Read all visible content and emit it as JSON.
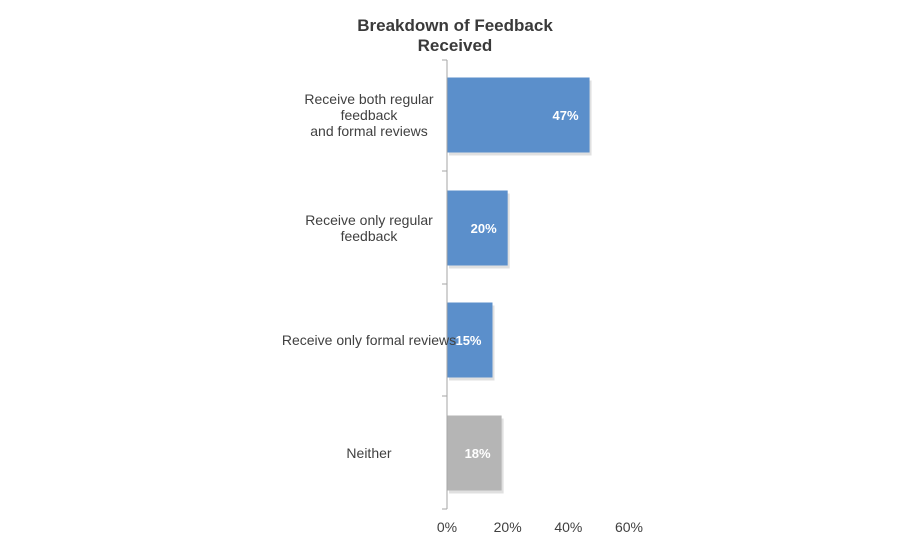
{
  "chart_data": {
    "type": "bar",
    "orientation": "horizontal",
    "title_lines": [
      "Breakdown of Feedback",
      "Received"
    ],
    "categories": [
      [
        "Receive both regular",
        "feedback",
        "and formal reviews"
      ],
      [
        "Receive only regular",
        "feedback"
      ],
      [
        "Receive only formal reviews"
      ],
      [
        "Neither"
      ]
    ],
    "values": [
      47,
      20,
      15,
      18
    ],
    "value_labels": [
      "47%",
      "20%",
      "15%",
      "18%"
    ],
    "bar_colors": [
      "#5b8fcb",
      "#5b8fcb",
      "#5b8fcb",
      "#b5b5b5"
    ],
    "xlim": [
      0,
      60
    ],
    "x_ticks": [
      0,
      20,
      40,
      60
    ],
    "x_tick_labels": [
      "0%",
      "20%",
      "40%",
      "60%"
    ],
    "grid": false,
    "legend": "none"
  }
}
